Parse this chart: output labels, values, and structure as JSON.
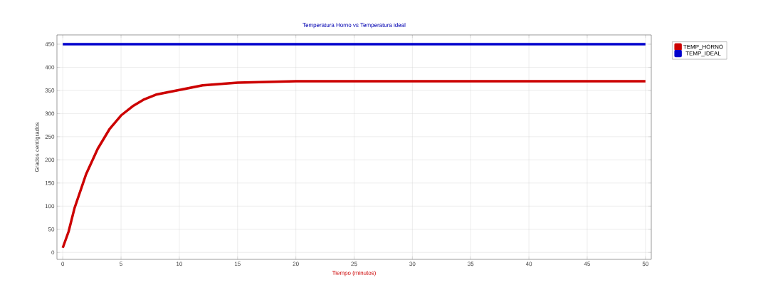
{
  "chart_data": {
    "type": "line",
    "title": "Temperatura Horno vs Temperatura ideal",
    "xlabel": "Tiempo (minutos)",
    "ylabel": "Grados centígrados",
    "series": [
      {
        "name": "TEMP_HORNO",
        "color": "#cc0000",
        "x": [
          0,
          0.5,
          1,
          2,
          3,
          4,
          5,
          6,
          7,
          8,
          10,
          12,
          15,
          20,
          50
        ],
        "values": [
          10,
          45,
          95,
          169,
          224,
          266,
          296,
          316,
          331,
          341,
          351,
          361,
          367,
          370,
          370
        ]
      },
      {
        "name": "TEMP_IDEAL",
        "color": "#0000cc",
        "x": [
          0,
          50
        ],
        "values": [
          450,
          450
        ]
      }
    ],
    "xlim": [
      -0.5,
      50.5
    ],
    "ylim": [
      -15,
      470
    ],
    "xticks": [
      0,
      5,
      10,
      15,
      20,
      25,
      30,
      35,
      40,
      45,
      50
    ],
    "yticks": [
      0,
      50,
      100,
      150,
      200,
      250,
      300,
      350,
      400,
      450
    ],
    "grid": true,
    "legend": "right",
    "marker": "none",
    "line_style": "solid"
  }
}
